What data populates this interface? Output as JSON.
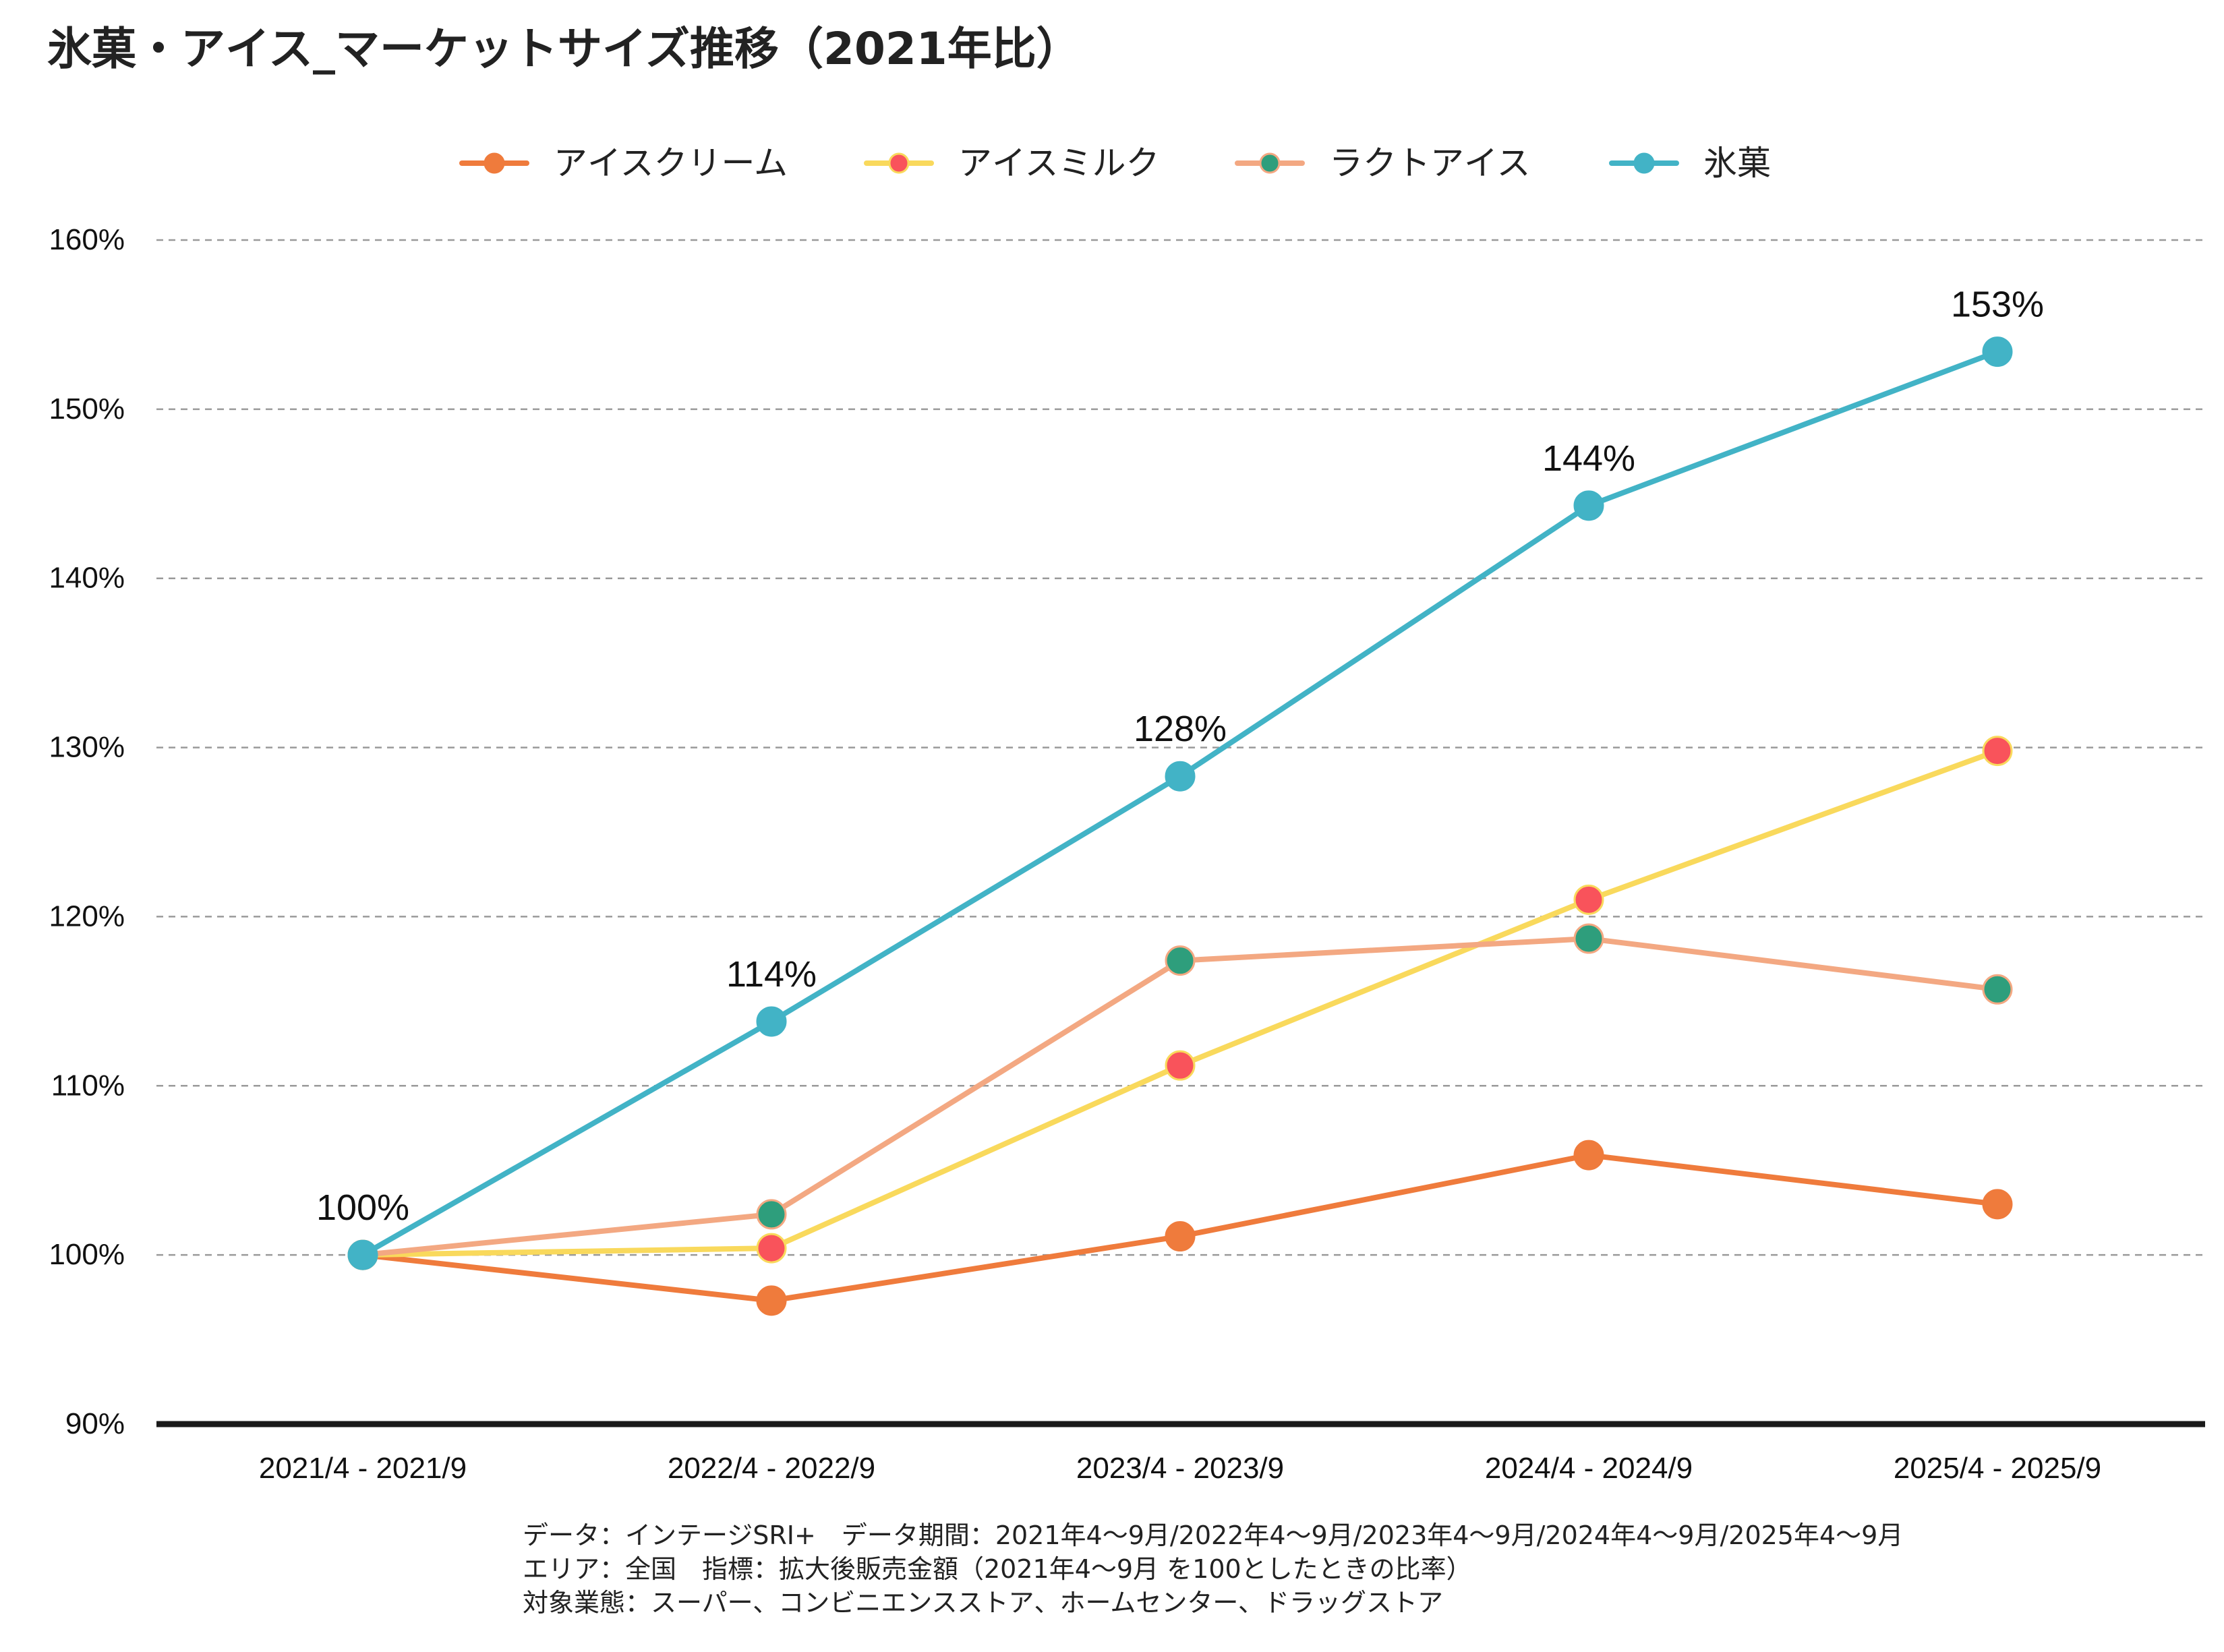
{
  "chart_data": {
    "type": "line",
    "title": "氷菓・アイス_マーケットサイズ推移（2021年比）",
    "categories": [
      "2021/4 - 2021/9",
      "2022/4 - 2022/9",
      "2023/4 - 2023/9",
      "2024/4 - 2024/9",
      "2025/4 - 2025/9"
    ],
    "ylim": [
      90,
      160
    ],
    "yticks": [
      90,
      100,
      110,
      120,
      130,
      140,
      150,
      160
    ],
    "ytick_labels": [
      "90%",
      "100%",
      "110%",
      "120%",
      "130%",
      "140%",
      "150%",
      "160%"
    ],
    "grid": "horizontal dashed",
    "legend_position": "top-center",
    "series": [
      {
        "name": "アイスクリーム",
        "color": "#EF7B3C",
        "marker_color": "#EF7B3C",
        "values": [
          100,
          97.3,
          101.1,
          105.9,
          103.0
        ]
      },
      {
        "name": "アイスミルク",
        "color": "#F9D95C",
        "marker_color": "#F9535B",
        "values": [
          100,
          100.4,
          111.2,
          121.0,
          129.8
        ]
      },
      {
        "name": "ラクトアイス",
        "color": "#F3A882",
        "marker_color": "#2E9E7C",
        "values": [
          100,
          102.4,
          117.4,
          118.7,
          115.7
        ]
      },
      {
        "name": "氷菓",
        "color": "#42B3C6",
        "marker_color": "#42B3C6",
        "values": [
          100,
          113.8,
          128.3,
          144.3,
          153.4
        ]
      }
    ],
    "data_labels": {
      "series": "氷菓",
      "labels": [
        "100%",
        "114%",
        "128%",
        "144%",
        "153%"
      ]
    },
    "notes": [
      "データ：インテージSRI+　データ期間：2021年4〜9月/2022年4〜9月/2023年4〜9月/2024年4〜9月/2025年4〜9月",
      "エリア：全国　指標：拡大後販売金額（2021年4〜9月  を100としたときの比率）",
      "対象業態：スーパー、コンビニエンスストア、ホームセンター、ドラッグストア"
    ]
  }
}
